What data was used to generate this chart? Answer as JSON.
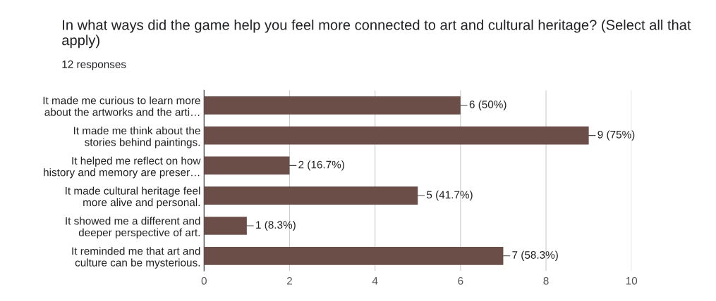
{
  "chart_data": {
    "type": "bar",
    "orientation": "horizontal",
    "title": "In what ways did the game help you feel more connected to art and cultural heritage? (Select all that apply)",
    "subtitle": "12 responses",
    "categories": [
      "It made me curious to learn more\nabout the artworks and the arti…",
      "It made me think about the\nstories behind paintings.",
      "It helped me reflect on how\nhistory and memory are preser…",
      "It made cultural heritage feel\nmore alive and personal.",
      "It showed me a different and\ndeeper perspective of art.",
      "It reminded me that art and\nculture can be mysterious."
    ],
    "values": [
      6,
      9,
      2,
      5,
      1,
      7
    ],
    "value_labels": [
      "6 (50%)",
      "9 (75%)",
      "2 (16.7%)",
      "5 (41.7%)",
      "1 (8.3%)",
      "7 (58.3%)"
    ],
    "color": "#6b4e48",
    "xlim": [
      0,
      10
    ],
    "xticks": [
      0,
      2,
      4,
      6,
      8,
      10
    ],
    "grid": "x"
  }
}
